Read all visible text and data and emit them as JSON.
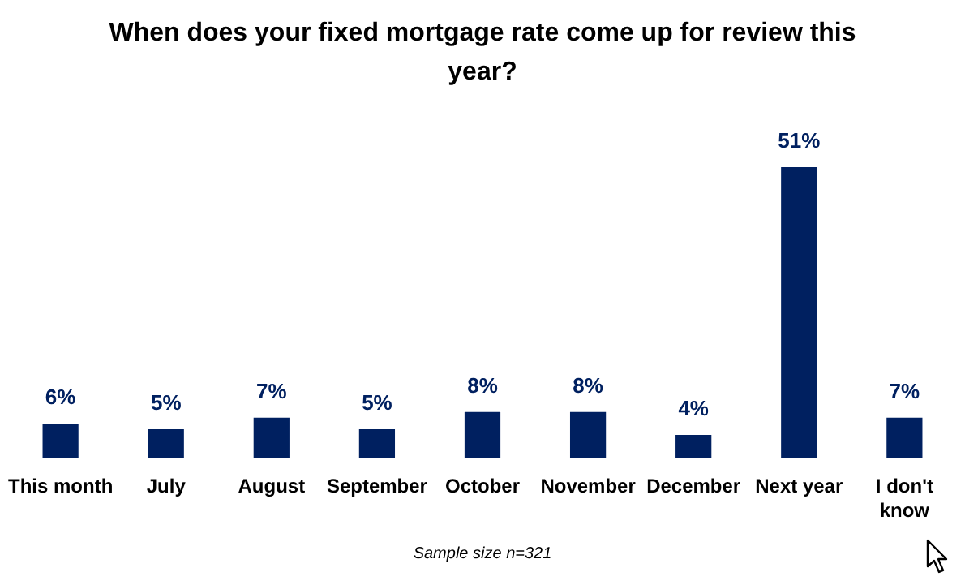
{
  "chart_data": {
    "type": "bar",
    "title": "When does your fixed mortgage rate come up for review this year?",
    "categories": [
      "This month",
      "July",
      "August",
      "September",
      "October",
      "November",
      "December",
      "Next year",
      "I don't know"
    ],
    "values": [
      6,
      5,
      7,
      5,
      8,
      8,
      4,
      51,
      7
    ],
    "value_labels": [
      "6%",
      "5%",
      "7%",
      "5%",
      "8%",
      "8%",
      "4%",
      "51%",
      "7%"
    ],
    "color": "#002060",
    "annotations": [
      "Sample size n=321"
    ]
  }
}
